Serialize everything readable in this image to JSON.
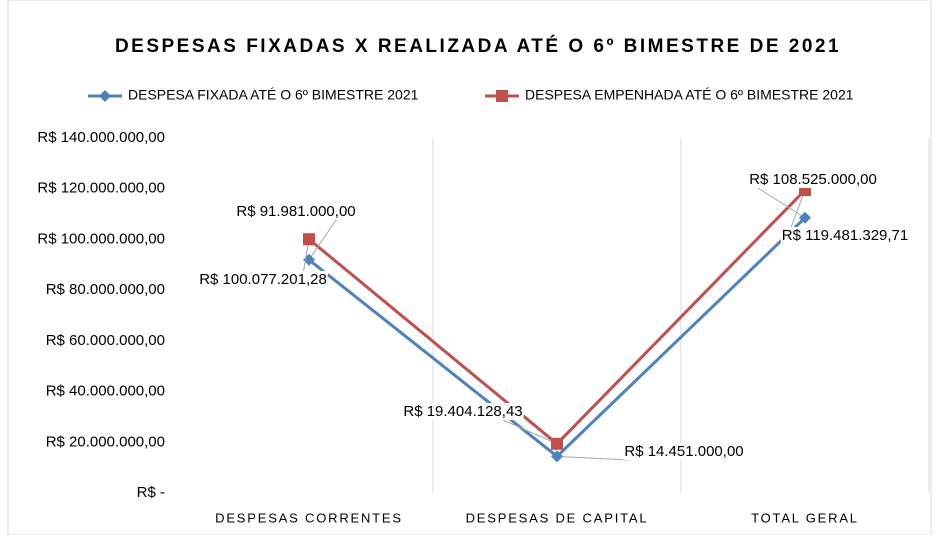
{
  "chart_data": {
    "type": "line",
    "title": "DESPESAS FIXADAS X REALIZADA ATÉ O 6º BIMESTRE DE 2021",
    "categories": [
      "DESPESAS CORRENTES",
      "DESPESAS DE CAPITAL",
      "TOTAL GERAL"
    ],
    "series": [
      {
        "name": "DESPESA FIXADA ATÉ O 6º BIMESTRE 2021",
        "color": "#4f81bd",
        "marker": "diamond",
        "values": [
          91981000,
          14451000,
          108525000
        ],
        "value_labels": [
          "R$ 91.981.000,00",
          "R$ 14.451.000,00",
          "R$ 108.525.000,00"
        ]
      },
      {
        "name": "DESPESA EMPENHADA ATÉ O 6º BIMESTRE 2021",
        "color": "#c0504d",
        "marker": "square",
        "values": [
          100077201.28,
          19404128.43,
          119481329.71
        ],
        "value_labels": [
          "R$ 100.077.201,28",
          "R$ 19.404.128,43",
          "R$ 119.481.329,71"
        ]
      }
    ],
    "ylim": [
      0,
      140000000
    ],
    "yticks": [
      {
        "value": 0,
        "label": "R$ -"
      },
      {
        "value": 20000000,
        "label": "R$ 20.000.000,00"
      },
      {
        "value": 40000000,
        "label": "R$ 40.000.000,00"
      },
      {
        "value": 60000000,
        "label": "R$ 60.000.000,00"
      },
      {
        "value": 80000000,
        "label": "R$ 80.000.000,00"
      },
      {
        "value": 100000000,
        "label": "R$ 100.000.000,00"
      },
      {
        "value": 120000000,
        "label": "R$ 120.000.000,00"
      },
      {
        "value": 140000000,
        "label": "R$ 140.000.000,00"
      }
    ],
    "legend": "top"
  }
}
